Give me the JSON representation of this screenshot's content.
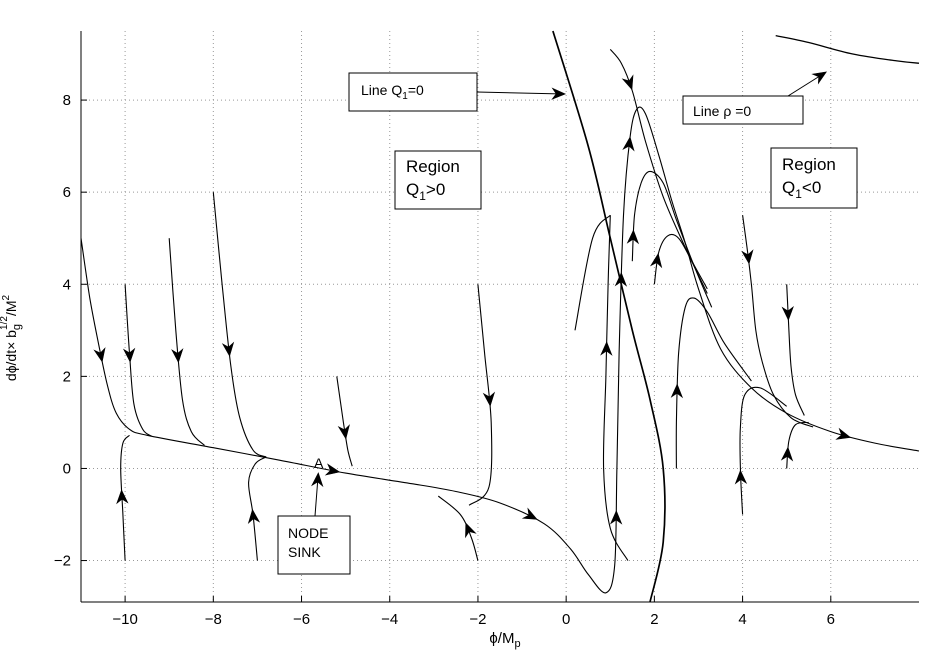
{
  "chart_data": {
    "type": "line",
    "title": "",
    "xlim": [
      -11,
      8
    ],
    "ylim": [
      -2.9,
      9.5
    ],
    "grid": true,
    "x_ticks": [
      -10,
      -8,
      -6,
      -4,
      -2,
      0,
      2,
      4,
      6
    ],
    "y_ticks": [
      -2,
      0,
      2,
      4,
      6,
      8
    ],
    "x_tick_labels": [
      "−10",
      "−8",
      "−6",
      "−4",
      "−2",
      "0",
      "2",
      "4",
      "6"
    ],
    "y_tick_labels": [
      "−2",
      "0",
      "2",
      "4",
      "6",
      "8"
    ],
    "xlabel": {
      "base": "ϕ/M",
      "sub": "p"
    },
    "ylabel": {
      "a": "dϕ/dt× b",
      "b_sub": "g",
      "b_sup": "1/2",
      "c": "/M",
      "c_sup": "2"
    },
    "series": [
      {
        "points": [
          [
            -11,
            5.0
          ],
          [
            -10.8,
            3.7
          ],
          [
            -10.6,
            2.7
          ],
          [
            -10.4,
            1.8
          ],
          [
            -10.2,
            1.2
          ],
          [
            -9.9,
            0.85
          ],
          [
            -9.5,
            0.72
          ],
          [
            -8,
            0.45
          ],
          [
            -6.5,
            0.18
          ],
          [
            -5,
            -0.1
          ],
          [
            -3.5,
            -0.33
          ],
          [
            -2.5,
            -0.5
          ],
          [
            -1.5,
            -0.75
          ],
          [
            -0.5,
            -1.2
          ],
          [
            0.1,
            -1.75
          ],
          [
            0.5,
            -2.3
          ],
          [
            0.9,
            -2.7
          ],
          [
            1.1,
            -2.1
          ],
          [
            1.15,
            0
          ],
          [
            1.2,
            2.5
          ],
          [
            1.3,
            5.5
          ],
          [
            1.45,
            7.2
          ],
          [
            1.6,
            7.8
          ],
          [
            1.8,
            7.7
          ],
          [
            2.1,
            6.8
          ],
          [
            2.4,
            5.8
          ],
          [
            2.7,
            4.9
          ],
          [
            3.0,
            3.9
          ],
          [
            3.5,
            2.6
          ],
          [
            4.2,
            1.75
          ],
          [
            5.0,
            1.2
          ],
          [
            6.0,
            0.8
          ],
          [
            7.0,
            0.55
          ],
          [
            8.0,
            0.38
          ]
        ],
        "arrows": [
          0.07,
          0.24,
          0.36,
          0.47,
          0.61,
          0.69,
          0.955
        ]
      },
      {
        "points": [
          [
            -10.0,
            -2.0
          ],
          [
            -10.05,
            -1.0
          ],
          [
            -10.1,
            0
          ],
          [
            -10.05,
            0.55
          ],
          [
            -9.9,
            0.72
          ]
        ],
        "arrows": [
          0.5
        ]
      },
      {
        "points": [
          [
            -10.0,
            4.0
          ],
          [
            -9.9,
            2.5
          ],
          [
            -9.8,
            1.4
          ],
          [
            -9.6,
            0.85
          ],
          [
            -9.4,
            0.7
          ]
        ],
        "arrows": [
          0.45
        ]
      },
      {
        "points": [
          [
            -9.0,
            5.0
          ],
          [
            -8.85,
            3.0
          ],
          [
            -8.7,
            1.5
          ],
          [
            -8.5,
            0.8
          ],
          [
            -8.2,
            0.5
          ]
        ],
        "arrows": [
          0.55
        ]
      },
      {
        "points": [
          [
            -8.0,
            6.0
          ],
          [
            -7.8,
            4.0
          ],
          [
            -7.6,
            2.2
          ],
          [
            -7.4,
            1.1
          ],
          [
            -7.1,
            0.4
          ],
          [
            -6.8,
            0.25
          ]
        ],
        "arrows": [
          0.57
        ]
      },
      {
        "points": [
          [
            -7.0,
            -2.0
          ],
          [
            -7.1,
            -1.0
          ],
          [
            -7.2,
            -0.3
          ],
          [
            -7.05,
            0.1
          ],
          [
            -6.8,
            0.25
          ]
        ],
        "arrows": [
          0.4
        ]
      },
      {
        "points": [
          [
            -5.2,
            2.0
          ],
          [
            -5.05,
            1.0
          ],
          [
            -4.95,
            0.4
          ],
          [
            -4.85,
            0.05
          ]
        ],
        "arrows": [
          0.62
        ]
      },
      {
        "points": [
          [
            -2.0,
            4.0
          ],
          [
            -1.85,
            2.5
          ],
          [
            -1.7,
            1.0
          ],
          [
            -1.75,
            -0.4
          ],
          [
            -2.2,
            -0.8
          ]
        ],
        "arrows": [
          0.5
        ]
      },
      {
        "points": [
          [
            -2.0,
            -2.0
          ],
          [
            -2.15,
            -1.5
          ],
          [
            -2.4,
            -1.0
          ],
          [
            -2.9,
            -0.6
          ]
        ],
        "arrows": [
          0.42
        ]
      },
      {
        "points": [
          [
            1.4,
            -2.0
          ],
          [
            1.0,
            -1.3
          ],
          [
            0.85,
            0
          ],
          [
            0.9,
            2.0
          ],
          [
            0.95,
            4.0
          ],
          [
            1.0,
            5.5
          ]
        ],
        "arrows": [
          0.62
        ]
      },
      {
        "points": [
          [
            1.0,
            5.5
          ],
          [
            0.6,
            5.0
          ],
          [
            0.2,
            3.0
          ]
        ],
        "arrows": []
      },
      {
        "points": [
          [
            1.5,
            4.5
          ],
          [
            1.55,
            5.5
          ],
          [
            1.7,
            6.2
          ],
          [
            1.9,
            6.45
          ],
          [
            2.2,
            6.2
          ],
          [
            2.5,
            5.4
          ],
          [
            2.9,
            4.4
          ],
          [
            3.3,
            3.5
          ]
        ],
        "arrows": [
          0.1
        ]
      },
      {
        "points": [
          [
            2.0,
            4.0
          ],
          [
            2.1,
            4.7
          ],
          [
            2.3,
            5.05
          ],
          [
            2.55,
            5.0
          ],
          [
            2.85,
            4.5
          ],
          [
            3.2,
            3.9
          ]
        ],
        "arrows": [
          0.2
        ]
      },
      {
        "points": [
          [
            2.5,
            0.0
          ],
          [
            2.5,
            1.0
          ],
          [
            2.55,
            2.5
          ],
          [
            2.7,
            3.5
          ],
          [
            2.9,
            3.7
          ],
          [
            3.2,
            3.4
          ],
          [
            3.6,
            2.7
          ],
          [
            4.2,
            1.9
          ]
        ],
        "arrows": [
          0.28
        ]
      },
      {
        "points": [
          [
            1.0,
            9.1
          ],
          [
            1.25,
            8.8
          ],
          [
            1.5,
            8.2
          ],
          [
            1.8,
            7.1
          ],
          [
            2.2,
            5.9
          ],
          [
            2.7,
            4.8
          ],
          [
            3.2,
            3.8
          ]
        ],
        "arrows": [
          0.15
        ]
      },
      {
        "points": [
          [
            4.0,
            5.5
          ],
          [
            4.1,
            4.8
          ],
          [
            4.2,
            4.0
          ],
          [
            4.3,
            3.0
          ],
          [
            4.45,
            2.3
          ],
          [
            4.7,
            1.6
          ],
          [
            5.1,
            1.1
          ],
          [
            5.6,
            0.9
          ]
        ],
        "arrows": [
          0.18
        ]
      },
      {
        "points": [
          [
            5.0,
            4.0
          ],
          [
            5.05,
            3.0
          ],
          [
            5.1,
            2.2
          ],
          [
            5.2,
            1.6
          ],
          [
            5.4,
            1.15
          ]
        ],
        "arrows": [
          0.22
        ]
      },
      {
        "points": [
          [
            4.0,
            -1.0
          ],
          [
            3.95,
            0
          ],
          [
            3.95,
            0.9
          ],
          [
            4.05,
            1.6
          ],
          [
            4.4,
            1.75
          ],
          [
            5.0,
            1.35
          ]
        ],
        "arrows": [
          0.22
        ]
      },
      {
        "points": [
          [
            5.0,
            0.0
          ],
          [
            5.05,
            0.6
          ],
          [
            5.2,
            0.95
          ],
          [
            5.5,
            1.0
          ]
        ],
        "arrows": [
          0.25
        ]
      }
    ],
    "q1_line": {
      "name": "Line  Q",
      "name_sub": "1",
      "name_tail": "=0",
      "points": [
        [
          -0.3,
          9.5
        ],
        [
          0.5,
          7.0
        ],
        [
          1.0,
          5.0
        ],
        [
          1.5,
          3.0
        ],
        [
          1.9,
          1.5
        ],
        [
          2.2,
          0
        ],
        [
          2.2,
          -1.6
        ],
        [
          1.9,
          -2.9
        ]
      ]
    },
    "rho_line": {
      "name": "Line  ρ =0",
      "points": [
        [
          4.75,
          9.4
        ],
        [
          5.5,
          9.25
        ],
        [
          6.5,
          9.0
        ],
        [
          7.5,
          8.85
        ],
        [
          8.0,
          8.8
        ]
      ]
    },
    "annotations": {
      "region_pos": {
        "line1": "Region",
        "line2_a": "Q",
        "line2_sub": "1",
        "line2_b": ">0"
      },
      "region_neg": {
        "line1": "Region",
        "line2_a": "Q",
        "line2_sub": "1",
        "line2_b": "<0"
      },
      "node": {
        "line1": "NODE",
        "line2": "SINK"
      },
      "point_label": "A"
    }
  }
}
